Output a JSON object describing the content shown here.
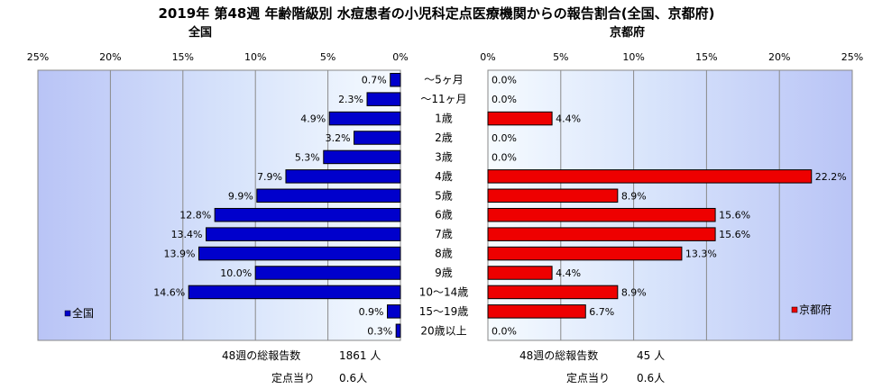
{
  "title": "2019年 第48週 年齢階級別 水痘患者の小児科定点医療機関からの報告割合(全国、京都府)",
  "chart_data": [
    {
      "type": "bar",
      "orientation": "horizontal-reversed",
      "title": "全国",
      "legend": "全国",
      "legend_position": "bottom-left",
      "color": "#0000cc",
      "xlim": [
        0,
        25
      ],
      "ticks": [
        "25%",
        "20%",
        "15%",
        "10%",
        "5%",
        "0%"
      ],
      "categories": [
        "～5ヶ月",
        "～11ヶ月",
        "1歳",
        "2歳",
        "3歳",
        "4歳",
        "5歳",
        "6歳",
        "7歳",
        "8歳",
        "9歳",
        "10～14歳",
        "15～19歳",
        "20歳以上"
      ],
      "values": [
        0.7,
        2.3,
        4.9,
        3.2,
        5.3,
        7.9,
        9.9,
        12.8,
        13.4,
        13.9,
        10.0,
        14.6,
        0.9,
        0.3
      ],
      "labels": [
        "0.7%",
        "2.3%",
        "4.9%",
        "3.2%",
        "5.3%",
        "7.9%",
        "9.9%",
        "12.8%",
        "13.4%",
        "13.9%",
        "10.0%",
        "14.6%",
        "0.9%",
        "0.3%"
      ]
    },
    {
      "type": "bar",
      "orientation": "horizontal",
      "title": "京都府",
      "legend": "京都府",
      "legend_position": "bottom-right",
      "color": "#ee0000",
      "xlim": [
        0,
        25
      ],
      "ticks": [
        "0%",
        "5%",
        "10%",
        "15%",
        "20%",
        "25%"
      ],
      "categories": [
        "～5ヶ月",
        "～11ヶ月",
        "1歳",
        "2歳",
        "3歳",
        "4歳",
        "5歳",
        "6歳",
        "7歳",
        "8歳",
        "9歳",
        "10～14歳",
        "15～19歳",
        "20歳以上"
      ],
      "values": [
        0.0,
        0.0,
        4.4,
        0.0,
        0.0,
        22.2,
        8.9,
        15.6,
        15.6,
        13.3,
        4.4,
        8.9,
        6.7,
        0.0
      ],
      "labels": [
        "0.0%",
        "0.0%",
        "4.4%",
        "0.0%",
        "0.0%",
        "22.2%",
        "8.9%",
        "15.6%",
        "15.6%",
        "13.3%",
        "4.4%",
        "8.9%",
        "6.7%",
        "0.0%"
      ]
    }
  ],
  "footer": {
    "national_reports_label": "48週の総報告数",
    "national_reports_value": "1861 人",
    "national_per_site_label": "定点当り",
    "national_per_site_value": "0.6人",
    "kyoto_reports_label": "48週の総報告数",
    "kyoto_reports_value": "45 人",
    "kyoto_per_site_label": "定点当り",
    "kyoto_per_site_value": "0.6人"
  }
}
